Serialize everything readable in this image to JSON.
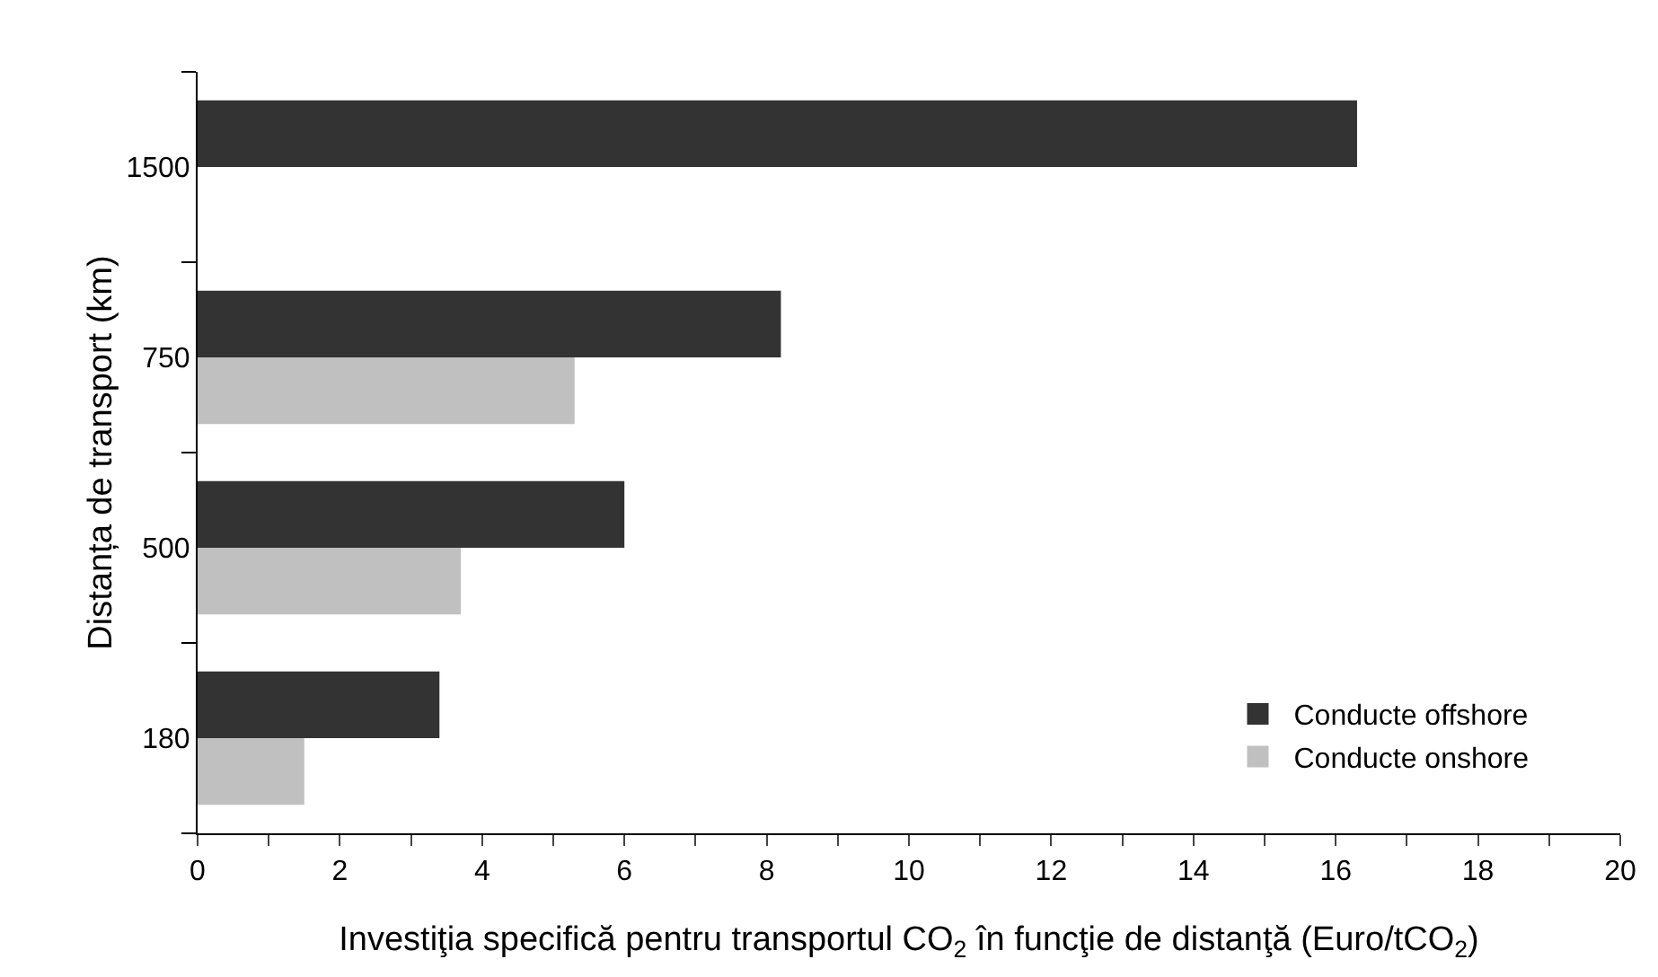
{
  "chart_data": {
    "type": "bar",
    "orientation": "horizontal",
    "xlabel": "Investiţia specifică pentru transportul CO$_{2}$ în funcţie de distanţă (Euro/tCO$_{2}$)",
    "ylabel": "Distanța de transport (km)",
    "categories": [
      "1500",
      "750",
      "500",
      "180"
    ],
    "series": [
      {
        "name": "Conducte offshore",
        "color": "#333333",
        "values": [
          16.3,
          8.2,
          6.0,
          3.4
        ]
      },
      {
        "name": "Conducte onshore",
        "color": "#c0c0c0",
        "values": [
          null,
          5.3,
          3.7,
          1.5
        ]
      }
    ],
    "xlim": [
      0,
      20
    ],
    "xticks": [
      0,
      {
        "value": 1,
        "label": null
      },
      2,
      {
        "value": 3,
        "label": null
      },
      4,
      {
        "value": 5,
        "label": null
      },
      6,
      {
        "value": 7,
        "label": null
      },
      8,
      {
        "value": 9,
        "label": null
      },
      10,
      {
        "value": 11,
        "label": null
      },
      12,
      {
        "value": 13,
        "label": null
      },
      14,
      {
        "value": 15,
        "label": null
      },
      16,
      {
        "value": 17,
        "label": null
      },
      18,
      {
        "value": 19,
        "label": null
      },
      20
    ],
    "grid": false,
    "legend": "bottom right"
  }
}
